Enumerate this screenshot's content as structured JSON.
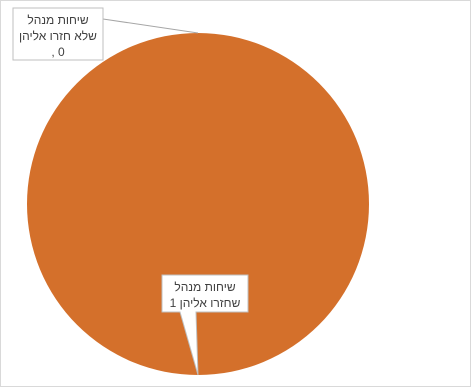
{
  "chart_data": {
    "type": "pie",
    "slices": [
      {
        "label_lines": [
          "שיחות מנהל",
          "שלא חזרו אליהן",
          "0 ,"
        ],
        "value": 0,
        "color": "#D4702B"
      },
      {
        "label_lines": [
          "שיחות מנהל",
          "שחזרו אליהן 1"
        ],
        "value": 1,
        "color": "#D4702B"
      }
    ],
    "slice_border_color": "#ffffff",
    "label_border_color": "#bfbfbf",
    "leader_line_color": "#a6a6a6"
  }
}
